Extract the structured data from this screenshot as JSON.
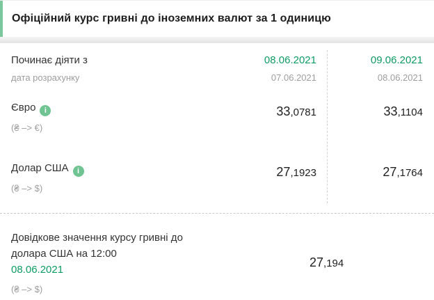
{
  "colors": {
    "accent_green": "#0f9b64",
    "mint_border": "#7cc89c",
    "info_icon_bg": "#6fc492",
    "muted_gray": "#9e9e9e",
    "dark_text": "#212121",
    "dashed_separator": "#c9c9c9"
  },
  "icons": {
    "info_glyph": "i"
  },
  "header": {
    "title": "Офіційний курс гривні до іноземних валют за 1 одиницю"
  },
  "rates_table": {
    "effective": {
      "label": "Починає діяти з",
      "sublabel": "дата розрахунку",
      "columns": [
        {
          "effective_date": "08.06.2021",
          "calc_date": "07.06.2021"
        },
        {
          "effective_date": "09.06.2021",
          "calc_date": "08.06.2021"
        }
      ]
    },
    "currencies": [
      {
        "name": "Євро",
        "pair": "(₴ –> €)",
        "values": [
          {
            "int": "33",
            "frac": ",0781"
          },
          {
            "int": "33",
            "frac": ",1104"
          }
        ]
      },
      {
        "name": "Долар США",
        "pair": "(₴ –> $)",
        "values": [
          {
            "int": "27",
            "frac": ",1923"
          },
          {
            "int": "27",
            "frac": ",1764"
          }
        ]
      }
    ]
  },
  "reference": {
    "title_line1": "Довідкове значення курсу гривні до",
    "title_line2": "долара США на 12:00",
    "date": "08.06.2021",
    "pair": "(₴ –> $)",
    "value": {
      "int": "27",
      "frac": ",194"
    }
  }
}
